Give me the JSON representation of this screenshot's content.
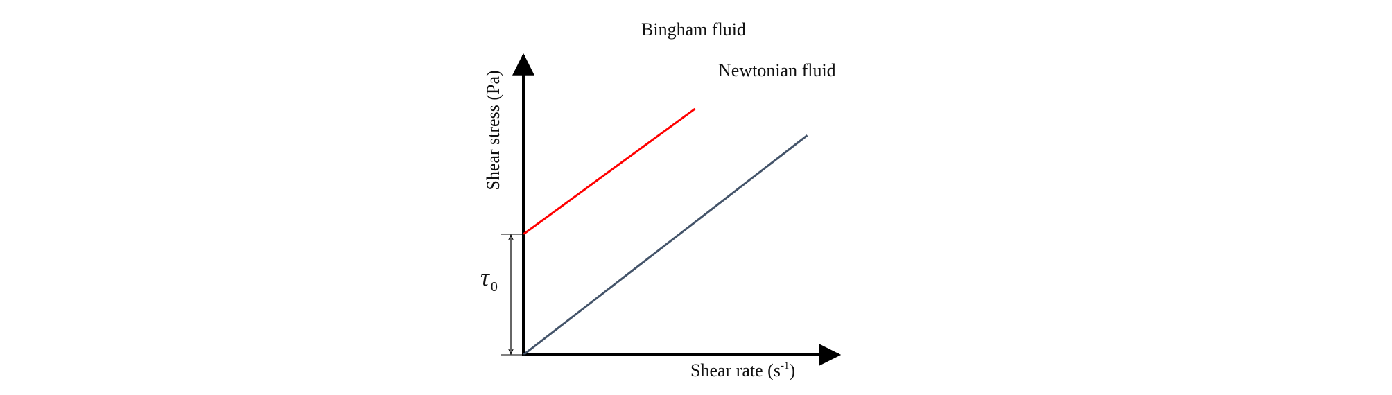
{
  "chart_data": {
    "type": "line",
    "title": "",
    "xlabel": "Shear rate (s",
    "xlabel_sup": "-1",
    "xlabel_tail": ")",
    "ylabel": "Shear stress (Pa)",
    "ylim": [
      0,
      10.2
    ],
    "xlim": [
      0,
      10.2
    ],
    "grid": false,
    "series": [
      {
        "name": "Bingham fluid",
        "color": "#ff0000",
        "x": [
          0,
          5.5
        ],
        "y": [
          5,
          10.2
        ]
      },
      {
        "name": "Newtonian fluid",
        "color": "#44546a",
        "x": [
          0,
          9.1
        ],
        "y": [
          0,
          9.1
        ]
      }
    ],
    "annotations": {
      "yield_stress": {
        "symbol": "τ",
        "subscript": "0",
        "from": 0,
        "to": 5
      }
    }
  }
}
